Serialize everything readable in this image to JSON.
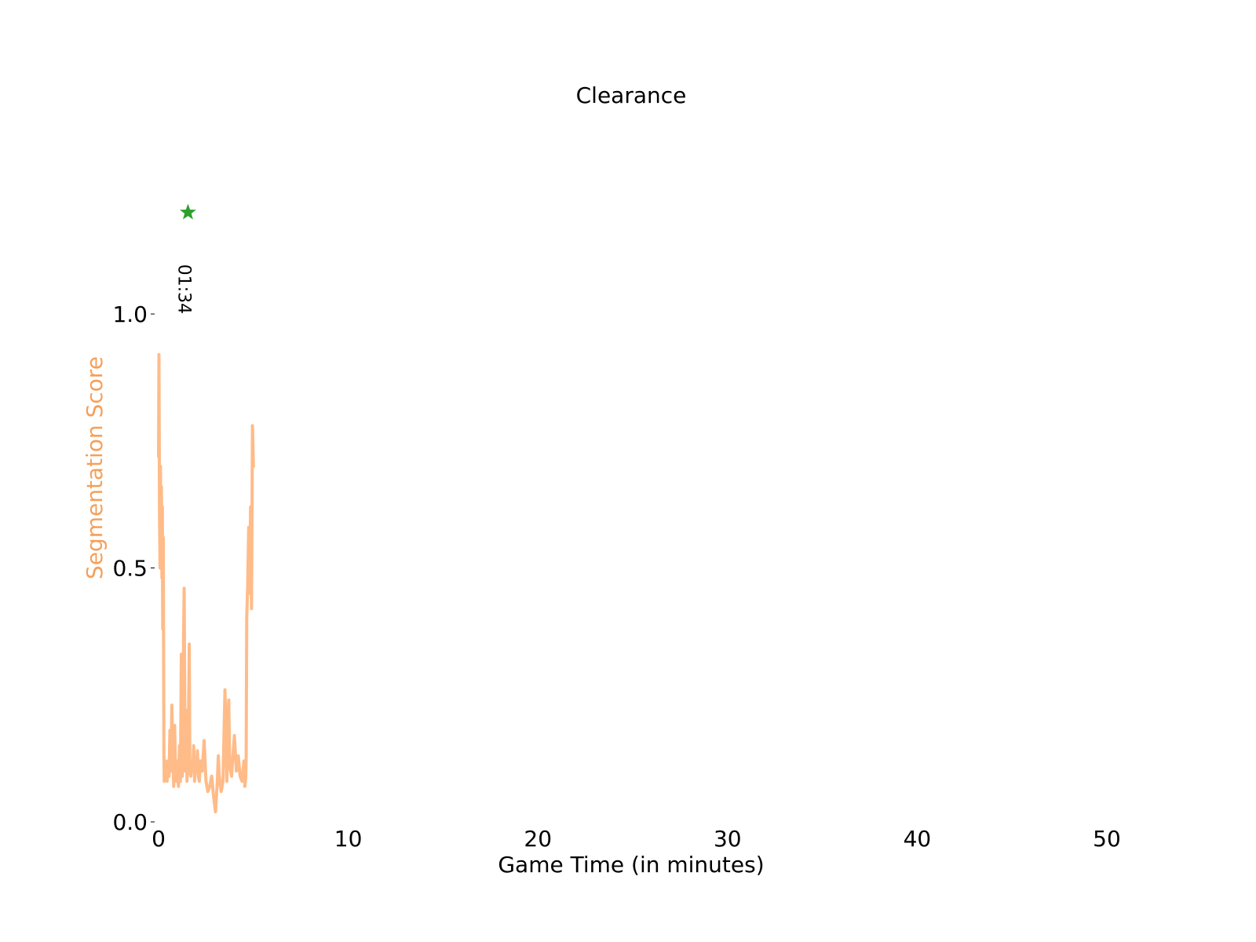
{
  "chart_data": {
    "type": "line",
    "title": "Clearance",
    "xlabel": "Game Time (in minutes)",
    "ylabel": "Segmentation Score",
    "xlim": [
      0,
      52
    ],
    "ylim": [
      0,
      1.2
    ],
    "xticks": [
      0,
      10,
      20,
      30,
      40,
      50
    ],
    "yticks": [
      0.0,
      0.5,
      1.0
    ],
    "xtick_labels": [
      "0",
      "10",
      "20",
      "30",
      "40",
      "50"
    ],
    "ytick_labels": [
      "0.0",
      "0.5",
      "1.0"
    ],
    "grid": false,
    "spines": false,
    "series": [
      {
        "color": "#ffbb88",
        "x": [
          0.0,
          0.02,
          0.05,
          0.08,
          0.1,
          0.12,
          0.15,
          0.18,
          0.2,
          0.22,
          0.25,
          0.28,
          0.3,
          0.32,
          0.35,
          0.38,
          0.4,
          0.42,
          0.45,
          0.5,
          0.55,
          0.6,
          0.65,
          0.7,
          0.75,
          0.8,
          0.85,
          0.9,
          0.95,
          1.0,
          1.05,
          1.1,
          1.15,
          1.2,
          1.25,
          1.3,
          1.35,
          1.4,
          1.45,
          1.5,
          1.55,
          1.6,
          1.62,
          1.65,
          1.7,
          1.75,
          1.8,
          1.85,
          1.9,
          1.95,
          2.0,
          2.05,
          2.1,
          2.15,
          2.2,
          2.3,
          2.4,
          2.5,
          2.6,
          2.7,
          2.8,
          2.9,
          3.0,
          3.1,
          3.15,
          3.2,
          3.3,
          3.4,
          3.5,
          3.6,
          3.7,
          3.75,
          3.8,
          3.85,
          3.9,
          4.0,
          4.1,
          4.2,
          4.3,
          4.4,
          4.5,
          4.55,
          4.6,
          4.62,
          4.65,
          4.7,
          4.75,
          4.8,
          4.85,
          4.9,
          4.95,
          5.0
        ],
        "values": [
          0.72,
          0.92,
          0.6,
          0.5,
          0.7,
          0.55,
          0.66,
          0.48,
          0.62,
          0.38,
          0.56,
          0.14,
          0.08,
          0.1,
          0.12,
          0.09,
          0.1,
          0.11,
          0.08,
          0.12,
          0.09,
          0.18,
          0.1,
          0.23,
          0.13,
          0.07,
          0.19,
          0.08,
          0.12,
          0.09,
          0.07,
          0.15,
          0.08,
          0.33,
          0.09,
          0.3,
          0.46,
          0.1,
          0.22,
          0.08,
          0.12,
          0.28,
          0.35,
          0.1,
          0.09,
          0.12,
          0.1,
          0.15,
          0.08,
          0.12,
          0.1,
          0.14,
          0.09,
          0.08,
          0.12,
          0.1,
          0.16,
          0.08,
          0.06,
          0.07,
          0.09,
          0.05,
          0.02,
          0.08,
          0.13,
          0.09,
          0.06,
          0.08,
          0.26,
          0.08,
          0.24,
          0.11,
          0.1,
          0.09,
          0.12,
          0.17,
          0.1,
          0.13,
          0.09,
          0.08,
          0.12,
          0.07,
          0.09,
          0.13,
          0.4,
          0.47,
          0.58,
          0.45,
          0.62,
          0.42,
          0.78,
          0.7
        ]
      }
    ],
    "markers": [
      {
        "symbol": "star",
        "x": 1.55,
        "y": 1.2,
        "color": "#2ca02c",
        "label": "01:34",
        "label_rotation": 90
      }
    ]
  }
}
